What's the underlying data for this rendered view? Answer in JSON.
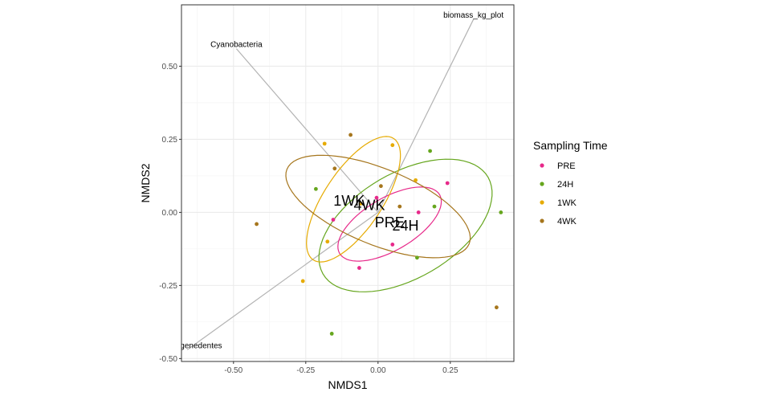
{
  "chart_data": {
    "type": "scatter",
    "xlabel": "NMDS1",
    "ylabel": "NMDS2",
    "xlim": [
      -0.68,
      0.47
    ],
    "ylim": [
      -0.51,
      0.71
    ],
    "x_ticks": [
      -0.5,
      -0.25,
      0.0,
      0.25
    ],
    "x_tick_labels": [
      "-0.50",
      "-0.25",
      "0.00",
      "0.25"
    ],
    "y_ticks": [
      -0.5,
      -0.25,
      0.0,
      0.25,
      0.5
    ],
    "y_tick_labels": [
      "-0.50",
      "-0.25",
      "0.00",
      "0.25",
      "0.50"
    ],
    "grid": true,
    "legend": {
      "title": "Sampling Time",
      "placement": "right",
      "entries": [
        "PRE",
        "24H",
        "1WK",
        "4WK"
      ]
    },
    "series": [
      {
        "name": "PRE",
        "color": "#E7298A",
        "points": [
          [
            -0.005,
            0.05
          ],
          [
            0.24,
            0.1
          ],
          [
            0.14,
            0.0
          ],
          [
            -0.155,
            -0.025
          ],
          [
            0.05,
            -0.11
          ],
          [
            -0.065,
            -0.19
          ]
        ],
        "centroid": [
          0.03,
          -0.04
        ],
        "ellipse": {
          "center": [
            0.04,
            -0.04
          ],
          "a": 0.2,
          "b": 0.09,
          "angle_deg": 30
        }
      },
      {
        "name": "24H",
        "color": "#66A61E",
        "points": [
          [
            0.18,
            0.21
          ],
          [
            0.195,
            0.02
          ],
          [
            0.425,
            0.0
          ],
          [
            0.135,
            -0.155
          ],
          [
            -0.215,
            0.08
          ],
          [
            -0.16,
            -0.415
          ]
        ],
        "centroid": [
          0.095,
          -0.045
        ],
        "ellipse": {
          "center": [
            0.095,
            -0.045
          ],
          "a": 0.33,
          "b": 0.18,
          "angle_deg": 30
        }
      },
      {
        "name": "1WK",
        "color": "#E6AB02",
        "points": [
          [
            -0.185,
            0.235
          ],
          [
            0.05,
            0.23
          ],
          [
            -0.175,
            -0.1
          ],
          [
            -0.26,
            -0.235
          ],
          [
            -0.06,
            0.03
          ],
          [
            0.13,
            0.11
          ]
        ],
        "centroid": [
          -0.1,
          0.04
        ],
        "ellipse": {
          "center": [
            -0.085,
            0.045
          ],
          "a": 0.25,
          "b": 0.1,
          "angle_deg": 56
        }
      },
      {
        "name": "4WK",
        "color": "#A6761D",
        "points": [
          [
            -0.095,
            0.265
          ],
          [
            -0.15,
            0.15
          ],
          [
            -0.42,
            -0.04
          ],
          [
            0.41,
            -0.325
          ],
          [
            0.075,
            0.02
          ],
          [
            0.01,
            0.09
          ]
        ],
        "centroid": [
          -0.04,
          0.03
        ],
        "ellipse": {
          "center": [
            0.0,
            0.02
          ],
          "a": 0.34,
          "b": 0.13,
          "angle_deg": -22
        }
      }
    ],
    "group_labels": [
      {
        "text": "1WK",
        "x": -0.1,
        "y": 0.04
      },
      {
        "text": "4WK",
        "x": -0.03,
        "y": 0.025
      },
      {
        "text": "PRE",
        "x": 0.04,
        "y": -0.035
      },
      {
        "text": "24H",
        "x": 0.095,
        "y": -0.045
      }
    ],
    "vectors": [
      {
        "name": "Cyanobacteria",
        "x": -0.49,
        "y": 0.56
      },
      {
        "name": "biomass_kg_plot",
        "x": 0.33,
        "y": 0.66
      },
      {
        "name": "Thermogenedentes",
        "x": -0.66,
        "y": -0.47
      }
    ],
    "vector_color": "#b3b3b3"
  }
}
